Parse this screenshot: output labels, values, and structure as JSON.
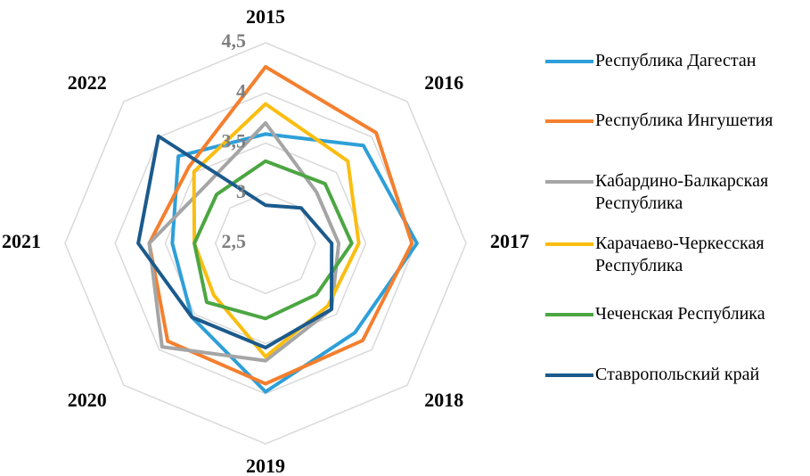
{
  "chart_data": {
    "type": "radar",
    "categories": [
      "2015",
      "2016",
      "2017",
      "2018",
      "2019",
      "2020",
      "2021",
      "2022"
    ],
    "rlim": [
      2.5,
      4.5
    ],
    "rticks": [
      {
        "value": 2.5,
        "label": "2,5"
      },
      3,
      {
        "value": 3.5,
        "label": "3,5"
      },
      4,
      {
        "value": 4.5,
        "label": "4,5"
      }
    ],
    "grid": true,
    "legend": "right",
    "series": [
      {
        "name": "Республика Дагестан",
        "color": "#2e9fd8",
        "values": [
          3.59,
          3.88,
          4.01,
          3.76,
          3.98,
          3.54,
          3.43,
          3.73
        ]
      },
      {
        "name": "Республика Ингушетия",
        "color": "#f47f2e",
        "values": [
          4.26,
          4.06,
          3.96,
          3.87,
          3.9,
          3.88,
          3.66,
          3.58
        ]
      },
      {
        "name": "Кабардино-Балкарская Республика",
        "color": "#a5a5a5",
        "values": [
          3.7,
          3.22,
          3.23,
          3.43,
          3.67,
          3.96,
          3.66,
          3.33
        ]
      },
      {
        "name": "Карачаево-Черкесская Республика",
        "color": "#fbbd10",
        "values": [
          3.89,
          3.66,
          3.43,
          3.38,
          3.63,
          3.23,
          3.21,
          3.51
        ]
      },
      {
        "name": "Чеченская Республика",
        "color": "#4ca642",
        "values": [
          3.32,
          3.34,
          3.36,
          3.22,
          3.25,
          3.33,
          3.21,
          3.19
        ]
      },
      {
        "name": "Ставропольский край",
        "color": "#1b5a8c",
        "values": [
          2.88,
          3.0,
          3.16,
          3.43,
          3.54,
          3.54,
          3.77,
          4.01
        ]
      }
    ]
  }
}
